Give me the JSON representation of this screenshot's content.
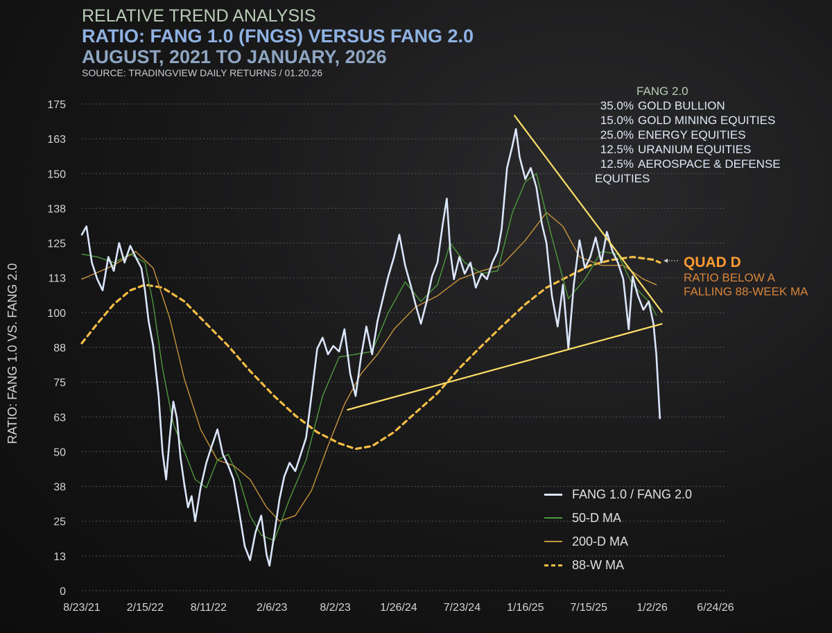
{
  "header": {
    "title": "RELATIVE TREND ANALYSIS",
    "subtitle": "RATIO: FANG 1.0 (FNGS) VERSUS FANG 2.0",
    "period": "AUGUST, 2021 TO JANUARY, 2026",
    "source": "SOURCE: TRADINGVIEW DAILY RETURNS / 01.20.26"
  },
  "composition": {
    "title": "FANG 2.0",
    "items": [
      {
        "pct": "35.0%",
        "label": "GOLD BULLION"
      },
      {
        "pct": "15.0%",
        "label": "GOLD MINING EQUITIES"
      },
      {
        "pct": "25.0%",
        "label": "ENERGY EQUITIES"
      },
      {
        "pct": "12.5%",
        "label": "URANIUM EQUITIES"
      },
      {
        "pct": "12.5%",
        "label": "AEROSPACE & DEFENSE EQUITIES"
      }
    ]
  },
  "annotation": {
    "title": "QUAD D",
    "line1": "RATIO BELOW A",
    "line2": "FALLING 88-WEEK MA"
  },
  "colors": {
    "ratio": "#dbe6fb",
    "ma50": "#4f9a3c",
    "ma200": "#c9953e",
    "ma88w": "#f5bd45",
    "trendline": "#ffe066",
    "grid": "#555555"
  },
  "chart_data": {
    "type": "line",
    "ylabel": "RATIO: FANG 1.0 VS. FANG 2.0",
    "ylim": [
      0,
      175
    ],
    "yticks": [
      "0",
      "13",
      "25",
      "38",
      "50",
      "63",
      "75",
      "88",
      "100",
      "113",
      "125",
      "138",
      "150",
      "163",
      "175"
    ],
    "xticks": [
      "8/23/21",
      "2/15/22",
      "8/11/22",
      "2/6/23",
      "8/2/23",
      "1/26/24",
      "7/23/24",
      "1/16/25",
      "7/15/25",
      "1/2/26",
      "6/24/26"
    ],
    "xlim": [
      "2021-08-23",
      "2026-06-24"
    ],
    "legend_position": "bottom-right",
    "grid": "horizontal dotted",
    "series": [
      {
        "name": "FANG 1.0 / FANG 2.0",
        "style": "line",
        "points": [
          [
            "2021-08-23",
            128
          ],
          [
            "2021-09-05",
            131
          ],
          [
            "2021-09-20",
            118
          ],
          [
            "2021-10-05",
            112
          ],
          [
            "2021-10-20",
            108
          ],
          [
            "2021-11-05",
            120
          ],
          [
            "2021-11-20",
            115
          ],
          [
            "2021-12-05",
            125
          ],
          [
            "2021-12-20",
            118
          ],
          [
            "2022-01-05",
            124
          ],
          [
            "2022-01-20",
            120
          ],
          [
            "2022-02-05",
            116
          ],
          [
            "2022-02-15",
            108
          ],
          [
            "2022-02-25",
            97
          ],
          [
            "2022-03-10",
            88
          ],
          [
            "2022-03-25",
            70
          ],
          [
            "2022-04-05",
            50
          ],
          [
            "2022-04-15",
            40
          ],
          [
            "2022-04-25",
            55
          ],
          [
            "2022-05-05",
            68
          ],
          [
            "2022-05-15",
            62
          ],
          [
            "2022-05-25",
            48
          ],
          [
            "2022-06-05",
            38
          ],
          [
            "2022-06-15",
            30
          ],
          [
            "2022-06-25",
            34
          ],
          [
            "2022-07-05",
            25
          ],
          [
            "2022-07-20",
            37
          ],
          [
            "2022-08-05",
            46
          ],
          [
            "2022-08-20",
            52
          ],
          [
            "2022-09-05",
            58
          ],
          [
            "2022-09-20",
            49
          ],
          [
            "2022-10-05",
            45
          ],
          [
            "2022-10-20",
            40
          ],
          [
            "2022-11-05",
            28
          ],
          [
            "2022-11-20",
            16
          ],
          [
            "2022-12-05",
            11
          ],
          [
            "2022-12-20",
            21
          ],
          [
            "2023-01-05",
            27
          ],
          [
            "2023-01-20",
            13
          ],
          [
            "2023-01-28",
            9
          ],
          [
            "2023-02-10",
            20
          ],
          [
            "2023-02-25",
            33
          ],
          [
            "2023-03-10",
            41
          ],
          [
            "2023-03-25",
            46
          ],
          [
            "2023-04-10",
            43
          ],
          [
            "2023-04-25",
            49
          ],
          [
            "2023-05-10",
            55
          ],
          [
            "2023-05-25",
            70
          ],
          [
            "2023-06-10",
            87
          ],
          [
            "2023-06-25",
            91
          ],
          [
            "2023-07-10",
            85
          ],
          [
            "2023-07-25",
            88
          ],
          [
            "2023-08-10",
            86
          ],
          [
            "2023-08-25",
            94
          ],
          [
            "2023-09-10",
            78
          ],
          [
            "2023-09-25",
            70
          ],
          [
            "2023-10-10",
            84
          ],
          [
            "2023-10-25",
            95
          ],
          [
            "2023-11-10",
            85
          ],
          [
            "2023-11-25",
            97
          ],
          [
            "2023-12-10",
            105
          ],
          [
            "2023-12-25",
            113
          ],
          [
            "2024-01-10",
            120
          ],
          [
            "2024-01-25",
            128
          ],
          [
            "2024-02-10",
            117
          ],
          [
            "2024-02-25",
            110
          ],
          [
            "2024-03-10",
            103
          ],
          [
            "2024-03-25",
            96
          ],
          [
            "2024-04-10",
            104
          ],
          [
            "2024-04-25",
            113
          ],
          [
            "2024-05-10",
            118
          ],
          [
            "2024-05-25",
            132
          ],
          [
            "2024-06-05",
            141
          ],
          [
            "2024-06-15",
            122
          ],
          [
            "2024-06-25",
            112
          ],
          [
            "2024-07-10",
            120
          ],
          [
            "2024-07-25",
            114
          ],
          [
            "2024-08-10",
            118
          ],
          [
            "2024-08-25",
            109
          ],
          [
            "2024-09-10",
            114
          ],
          [
            "2024-09-25",
            112
          ],
          [
            "2024-10-10",
            118
          ],
          [
            "2024-10-25",
            122
          ],
          [
            "2024-11-05",
            130
          ],
          [
            "2024-11-20",
            152
          ],
          [
            "2024-12-05",
            160
          ],
          [
            "2024-12-15",
            166
          ],
          [
            "2024-12-25",
            156
          ],
          [
            "2025-01-10",
            148
          ],
          [
            "2025-01-25",
            152
          ],
          [
            "2025-02-10",
            145
          ],
          [
            "2025-02-25",
            132
          ],
          [
            "2025-03-10",
            125
          ],
          [
            "2025-03-25",
            106
          ],
          [
            "2025-04-10",
            95
          ],
          [
            "2025-04-25",
            110
          ],
          [
            "2025-05-10",
            87
          ],
          [
            "2025-05-25",
            110
          ],
          [
            "2025-06-10",
            126
          ],
          [
            "2025-06-25",
            116
          ],
          [
            "2025-07-10",
            120
          ],
          [
            "2025-07-25",
            127
          ],
          [
            "2025-08-10",
            118
          ],
          [
            "2025-08-25",
            129
          ],
          [
            "2025-09-10",
            122
          ],
          [
            "2025-09-25",
            118
          ],
          [
            "2025-10-10",
            112
          ],
          [
            "2025-10-25",
            94
          ],
          [
            "2025-11-05",
            113
          ],
          [
            "2025-11-20",
            106
          ],
          [
            "2025-12-05",
            101
          ],
          [
            "2025-12-20",
            104
          ],
          [
            "2026-01-02",
            96
          ],
          [
            "2026-01-10",
            85
          ],
          [
            "2026-01-20",
            62
          ]
        ]
      },
      {
        "name": "50-D MA",
        "style": "line",
        "points": [
          [
            "2021-08-23",
            121
          ],
          [
            "2021-10-05",
            120
          ],
          [
            "2021-11-20",
            118
          ],
          [
            "2022-01-05",
            121
          ],
          [
            "2022-02-15",
            118
          ],
          [
            "2022-03-10",
            103
          ],
          [
            "2022-04-05",
            80
          ],
          [
            "2022-05-05",
            60
          ],
          [
            "2022-06-05",
            50
          ],
          [
            "2022-07-05",
            40
          ],
          [
            "2022-08-05",
            37
          ],
          [
            "2022-09-05",
            47
          ],
          [
            "2022-10-05",
            49
          ],
          [
            "2022-11-05",
            40
          ],
          [
            "2022-12-05",
            27
          ],
          [
            "2023-01-05",
            20
          ],
          [
            "2023-02-10",
            18
          ],
          [
            "2023-03-25",
            33
          ],
          [
            "2023-05-10",
            47
          ],
          [
            "2023-06-25",
            70
          ],
          [
            "2023-08-10",
            84
          ],
          [
            "2023-09-25",
            85
          ],
          [
            "2023-11-10",
            86
          ],
          [
            "2023-12-25",
            100
          ],
          [
            "2024-02-10",
            111
          ],
          [
            "2024-03-25",
            104
          ],
          [
            "2024-05-10",
            110
          ],
          [
            "2024-06-15",
            125
          ],
          [
            "2024-07-25",
            118
          ],
          [
            "2024-09-10",
            114
          ],
          [
            "2024-10-25",
            115
          ],
          [
            "2024-12-05",
            136
          ],
          [
            "2025-01-10",
            147
          ],
          [
            "2025-02-10",
            150
          ],
          [
            "2025-03-25",
            127
          ],
          [
            "2025-05-10",
            105
          ],
          [
            "2025-06-25",
            112
          ],
          [
            "2025-08-10",
            122
          ],
          [
            "2025-09-25",
            121
          ],
          [
            "2025-11-05",
            110
          ],
          [
            "2025-12-20",
            104
          ],
          [
            "2026-01-10",
            99
          ]
        ]
      },
      {
        "name": "200-D MA",
        "style": "line",
        "points": [
          [
            "2021-08-23",
            112
          ],
          [
            "2021-11-20",
            117
          ],
          [
            "2022-01-20",
            122
          ],
          [
            "2022-03-10",
            116
          ],
          [
            "2022-04-25",
            98
          ],
          [
            "2022-06-05",
            76
          ],
          [
            "2022-07-20",
            58
          ],
          [
            "2022-09-05",
            47
          ],
          [
            "2022-10-20",
            45
          ],
          [
            "2022-12-05",
            40
          ],
          [
            "2023-01-20",
            30
          ],
          [
            "2023-02-25",
            25
          ],
          [
            "2023-04-10",
            27
          ],
          [
            "2023-05-25",
            36
          ],
          [
            "2023-07-10",
            52
          ],
          [
            "2023-08-25",
            67
          ],
          [
            "2023-10-10",
            78
          ],
          [
            "2023-11-25",
            85
          ],
          [
            "2024-01-10",
            94
          ],
          [
            "2024-03-10",
            102
          ],
          [
            "2024-05-10",
            106
          ],
          [
            "2024-07-10",
            112
          ],
          [
            "2024-09-10",
            115
          ],
          [
            "2024-11-05",
            117
          ],
          [
            "2025-01-10",
            126
          ],
          [
            "2025-03-10",
            136
          ],
          [
            "2025-04-25",
            131
          ],
          [
            "2025-06-10",
            120
          ],
          [
            "2025-08-10",
            117
          ],
          [
            "2025-10-10",
            117
          ],
          [
            "2025-12-05",
            112
          ],
          [
            "2026-01-10",
            110
          ]
        ]
      },
      {
        "name": "88-W MA",
        "style": "dashed",
        "points": [
          [
            "2021-08-23",
            89
          ],
          [
            "2021-10-05",
            96
          ],
          [
            "2021-11-20",
            103
          ],
          [
            "2022-01-05",
            108
          ],
          [
            "2022-02-15",
            110
          ],
          [
            "2022-04-05",
            109
          ],
          [
            "2022-06-05",
            104
          ],
          [
            "2022-08-05",
            96
          ],
          [
            "2022-10-05",
            88
          ],
          [
            "2022-12-05",
            79
          ],
          [
            "2023-02-10",
            70
          ],
          [
            "2023-04-10",
            63
          ],
          [
            "2023-06-10",
            57
          ],
          [
            "2023-08-10",
            53
          ],
          [
            "2023-09-25",
            51
          ],
          [
            "2023-11-10",
            52
          ],
          [
            "2024-01-10",
            57
          ],
          [
            "2024-03-10",
            64
          ],
          [
            "2024-05-10",
            71
          ],
          [
            "2024-07-10",
            80
          ],
          [
            "2024-09-10",
            88
          ],
          [
            "2024-11-05",
            95
          ],
          [
            "2025-01-10",
            103
          ],
          [
            "2025-03-10",
            109
          ],
          [
            "2025-05-10",
            113
          ],
          [
            "2025-07-10",
            117
          ],
          [
            "2025-09-10",
            119
          ],
          [
            "2025-11-05",
            120
          ],
          [
            "2026-01-02",
            119
          ],
          [
            "2026-01-20",
            118
          ]
        ]
      }
    ],
    "trendlines": [
      {
        "points": [
          [
            "2024-12-10",
            171
          ],
          [
            "2026-01-27",
            100
          ]
        ]
      },
      {
        "points": [
          [
            "2023-09-01",
            65
          ],
          [
            "2026-01-27",
            96
          ]
        ]
      }
    ]
  }
}
